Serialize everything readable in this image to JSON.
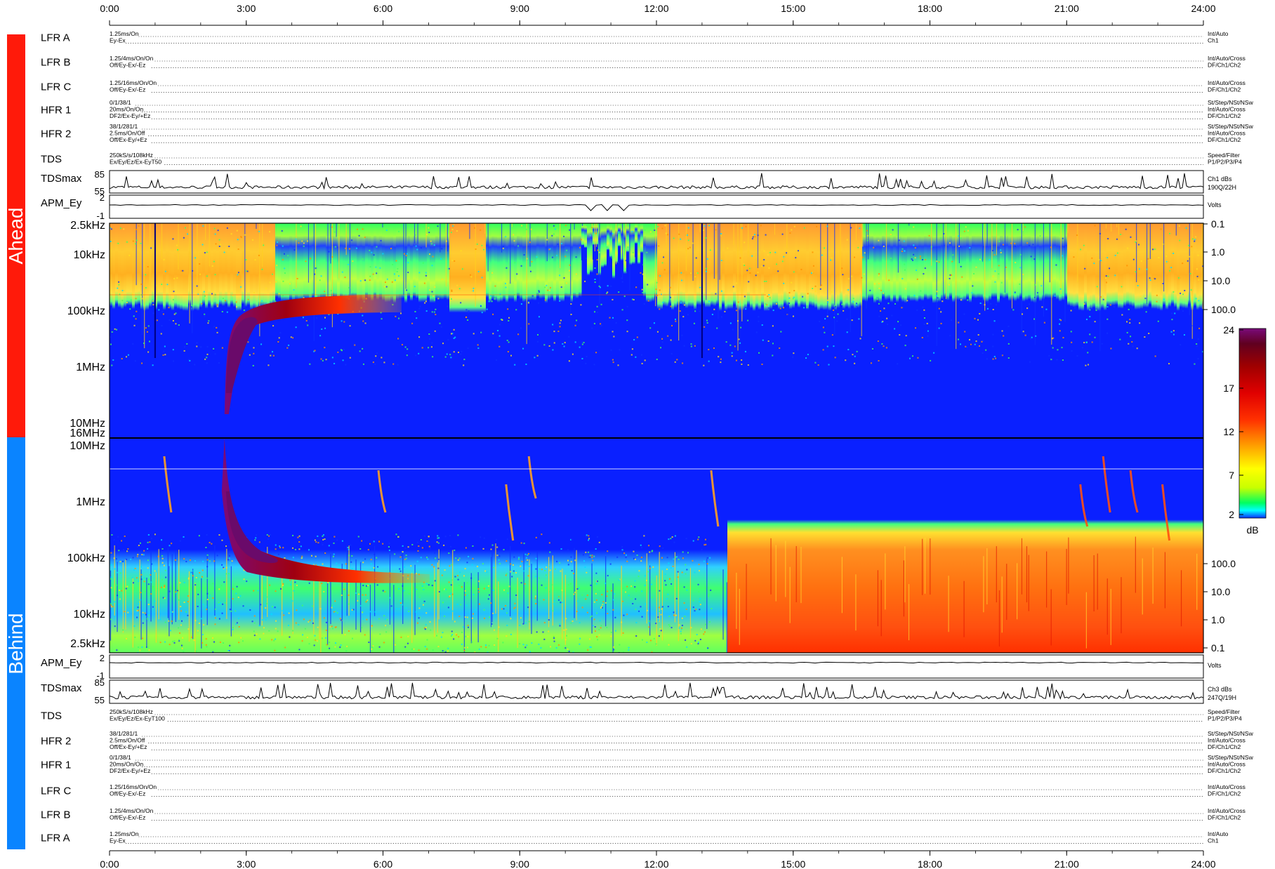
{
  "time_axis": {
    "ticks": [
      "0:00",
      "3:00",
      "6:00",
      "9:00",
      "12:00",
      "15:00",
      "18:00",
      "21:00",
      "24:00"
    ]
  },
  "side_labels": {
    "ahead": "Ahead",
    "behind": "Behind"
  },
  "colors": {
    "ahead_bar": "#ff1a0a",
    "behind_bar": "#0a84ff",
    "background_plasma": "#0010ff"
  },
  "ahead_rows": [
    {
      "label": "LFR A",
      "left": [
        "1.25ms/On",
        "Ey-Ex"
      ],
      "right": [
        "Int/Auto",
        "Ch1"
      ]
    },
    {
      "label": "LFR B",
      "left": [
        "1.25/4ms/On/On",
        "Off/Ey-Ex/-Ez"
      ],
      "right": [
        "Int/Auto/Cross",
        "DF/Ch1/Ch2"
      ]
    },
    {
      "label": "LFR C",
      "left": [
        "1.25/16ms/On/On",
        "Off/Ey-Ex/-Ez"
      ],
      "right": [
        "Int/Auto/Cross",
        "DF/Ch1/Ch2"
      ]
    },
    {
      "label": "HFR 1",
      "left": [
        "0/1/38/1",
        "20ms/On/On",
        "DF2/Ex-Ey/+Ez"
      ],
      "right": [
        "St/Step/NSt/NSw",
        "Int/Auto/Cross",
        "DF/Ch1/Ch2"
      ]
    },
    {
      "label": "HFR 2",
      "left": [
        "38/1/281/1",
        "2.5ms/On/Off",
        "Off/Ex-Ey/+Ez"
      ],
      "right": [
        "St/Step/NSt/NSw",
        "Int/Auto/Cross",
        "DF/Ch1/Ch2"
      ]
    },
    {
      "label": "TDS",
      "left": [
        "250kS/s/108kHz",
        "Ex/Ey/Ez/Ex-EyT50"
      ],
      "right": [
        "Speed/Filter",
        "P1/P2/P3/P4"
      ]
    }
  ],
  "behind_rows": [
    {
      "label": "TDS",
      "left": [
        "250kS/s/108kHz",
        "Ex/Ey/Ez/Ex-EyT100"
      ],
      "right": [
        "Speed/Filter",
        "P1/P2/P3/P4"
      ]
    },
    {
      "label": "HFR 2",
      "left": [
        "38/1/281/1",
        "2.5ms/On/Off",
        "Off/Ex-Ey/+Ez"
      ],
      "right": [
        "St/Step/NSt/NSw",
        "Int/Auto/Cross",
        "DF/Ch1/Ch2"
      ]
    },
    {
      "label": "HFR 1",
      "left": [
        "0/1/38/1",
        "20ms/On/On",
        "DF2/Ex-Ey/+Ez"
      ],
      "right": [
        "St/Step/NSt/NSw",
        "Int/Auto/Cross",
        "DF/Ch1/Ch2"
      ]
    },
    {
      "label": "LFR C",
      "left": [
        "1.25/16ms/On/On",
        "Off/Ey-Ex/-Ez"
      ],
      "right": [
        "Int/Auto/Cross",
        "DF/Ch1/Ch2"
      ]
    },
    {
      "label": "LFR B",
      "left": [
        "1.25/4ms/On/On",
        "Off/Ey-Ex/-Ez"
      ],
      "right": [
        "Int/Auto/Cross",
        "DF/Ch1/Ch2"
      ]
    },
    {
      "label": "LFR A",
      "left": [
        "1.25ms/On",
        "Ey-Ex"
      ],
      "right": [
        "Int/Auto",
        "Ch1"
      ]
    }
  ],
  "ahead_tdsmax": {
    "label": "TDSmax",
    "ticks": [
      "85",
      "55"
    ],
    "right": [
      "Ch1 dBs",
      "190Q/22H"
    ]
  },
  "ahead_apm": {
    "label": "APM_Ey",
    "ticks": [
      "2",
      "-1"
    ],
    "right": [
      "Volts"
    ]
  },
  "behind_apm": {
    "label": "APM_Ey",
    "ticks": [
      "2",
      "-1"
    ],
    "right": [
      "Volts"
    ]
  },
  "behind_tdsmax": {
    "label": "TDSmax",
    "ticks": [
      "85",
      "55"
    ],
    "right": [
      "Ch3 dBs",
      "247Q/19H"
    ]
  },
  "ahead_freq_labels": [
    "2.5kHz",
    "10kHz",
    "100kHz",
    "1MHz",
    "10MHz",
    "16MHz"
  ],
  "behind_freq_labels": [
    "10MHz",
    "1MHz",
    "100kHz",
    "10kHz",
    "2.5kHz"
  ],
  "ahead_right_ticks": [
    "0.1",
    "1.0",
    "10.0",
    "100.0"
  ],
  "behind_right_ticks": [
    "100.0",
    "10.0",
    "1.0",
    "0.1"
  ],
  "colorbar": {
    "unit": "dB",
    "ticks": [
      "24",
      "17",
      "12",
      "7",
      "2"
    ],
    "range": [
      2,
      24
    ]
  },
  "chart_data": {
    "type": "heatmap",
    "x_range_hours": [
      0,
      24
    ],
    "x_ticks": [
      "0:00",
      "3:00",
      "6:00",
      "9:00",
      "12:00",
      "15:00",
      "18:00",
      "21:00",
      "24:00"
    ],
    "ahead_y_range": [
      "2.5kHz",
      "16MHz"
    ],
    "behind_y_range": [
      "16MHz",
      "2.5kHz"
    ],
    "y_scale": "log",
    "colorbar_dB": [
      2,
      24
    ],
    "features": [
      {
        "panel": "ahead",
        "type": "type II radio burst",
        "start_hour": 2.4,
        "high_freq": "10MHz",
        "low_freq": "100kHz",
        "end_hour": 6.0
      },
      {
        "panel": "behind",
        "type": "type II radio burst",
        "start_hour": 2.4,
        "high_freq": "16MHz",
        "low_freq": "100kHz",
        "end_hour": 6.0
      },
      {
        "panel": "behind",
        "type": "intensity increase",
        "start_hour": 13.6,
        "freq_upper": "300kHz",
        "end_hour": 24
      }
    ],
    "ahead_tdsmax_range": [
      55,
      85
    ],
    "behind_tdsmax_range": [
      55,
      85
    ],
    "apm_range_volts": [
      -1,
      2
    ]
  }
}
